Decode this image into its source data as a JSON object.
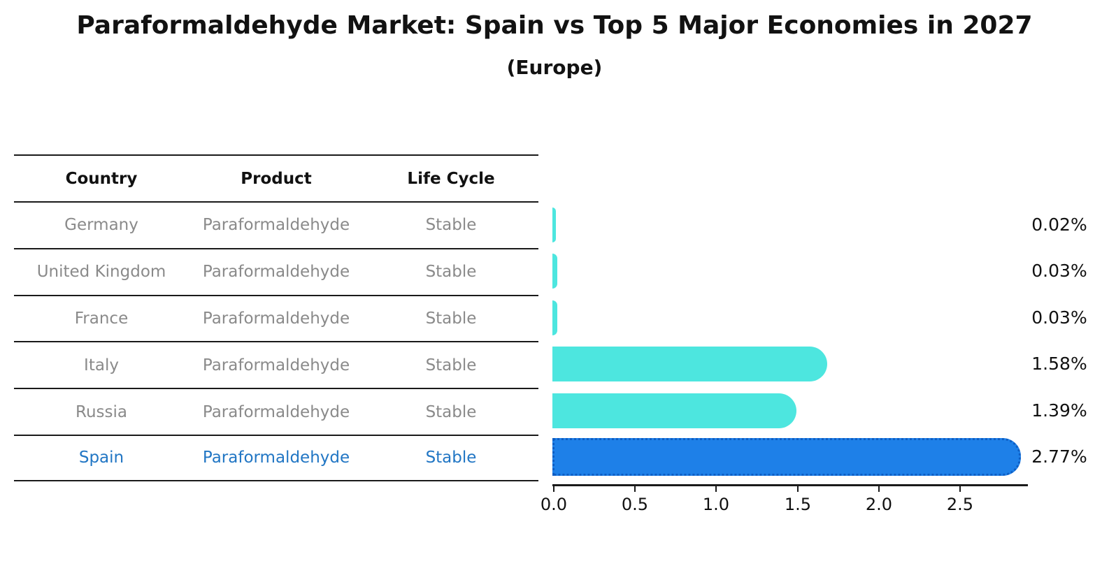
{
  "title": "Paraformaldehyde Market: Spain vs Top 5 Major Economies in 2027",
  "subtitle": "(Europe)",
  "table": {
    "headers": [
      "Country",
      "Product",
      "Life Cycle"
    ],
    "rows": [
      {
        "country": "Germany",
        "product": "Paraformaldehyde",
        "life_cycle": "Stable"
      },
      {
        "country": "United Kingdom",
        "product": "Paraformaldehyde",
        "life_cycle": "Stable"
      },
      {
        "country": "France",
        "product": "Paraformaldehyde",
        "life_cycle": "Stable"
      },
      {
        "country": "Italy",
        "product": "Paraformaldehyde",
        "life_cycle": "Stable"
      },
      {
        "country": "Russia",
        "product": "Paraformaldehyde",
        "life_cycle": "Stable"
      },
      {
        "country": "Spain",
        "product": "Paraformaldehyde",
        "life_cycle": "Stable"
      }
    ]
  },
  "chart_data": {
    "type": "bar",
    "orientation": "horizontal",
    "title": "Paraformaldehyde Market: Spain vs Top 5 Major Economies in 2027 (Europe)",
    "categories": [
      "Germany",
      "United Kingdom",
      "France",
      "Italy",
      "Russia",
      "Spain"
    ],
    "values": [
      0.02,
      0.03,
      0.03,
      1.58,
      1.39,
      2.77
    ],
    "value_labels": [
      "0.02%",
      "0.03%",
      "0.03%",
      "1.58%",
      "1.39%",
      "2.77%"
    ],
    "x_ticks": [
      "0.0",
      "0.5",
      "1.0",
      "1.5",
      "2.0",
      "2.5"
    ],
    "xlim": [
      0,
      2.92
    ],
    "grid": false,
    "legend": false,
    "bar_color": "#4de6df",
    "highlight_color": "#1e80e8",
    "highlight_edge_color": "#0e5ec4",
    "highlight_text_color": "#2176c4",
    "highlight_index": 5
  }
}
